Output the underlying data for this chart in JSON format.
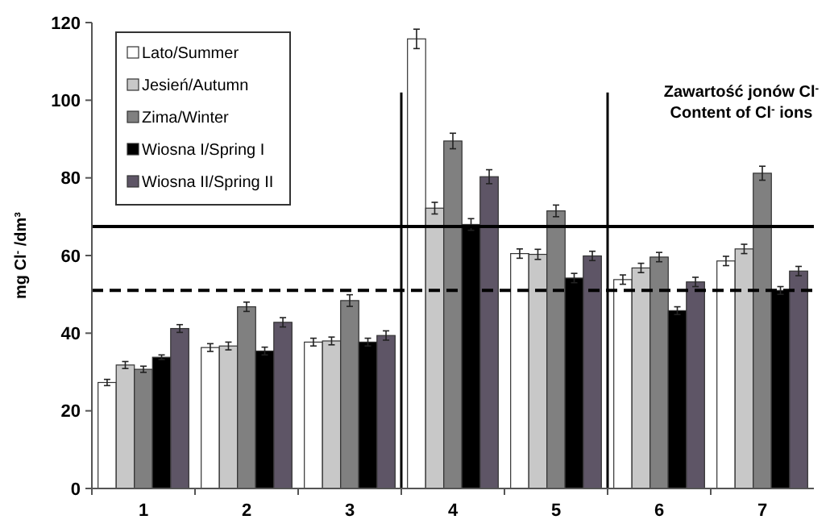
{
  "chart_data": {
    "type": "bar",
    "title": "Zawartość jonów Cl$^{-}$",
    "subtitle": "Content of Cl$^{-}$ ions",
    "ylabel": "mg Cl$^{-}$ /dm³",
    "categories": [
      "1",
      "2",
      "3",
      "4",
      "5",
      "6",
      "7"
    ],
    "series": [
      {
        "name": "Lato/Summer",
        "color": "#ffffff",
        "values": [
          27.3,
          36.3,
          37.7,
          115.8,
          60.5,
          53.8,
          58.6
        ],
        "errors": [
          0.8,
          1,
          1,
          2.5,
          1.2,
          1.2,
          1.2
        ]
      },
      {
        "name": "Jesień/Autumn",
        "color": "#c8c8c8",
        "values": [
          31.8,
          36.7,
          38,
          72.2,
          60.3,
          56.8,
          61.7
        ],
        "errors": [
          0.9,
          1,
          1,
          1.5,
          1.3,
          1.2,
          1.2
        ]
      },
      {
        "name": "Zima/Winter",
        "color": "#808080",
        "values": [
          30.7,
          46.8,
          48.4,
          89.5,
          71.5,
          59.6,
          81.2
        ],
        "errors": [
          0.8,
          1.2,
          1.5,
          2,
          1.5,
          1.2,
          1.8
        ]
      },
      {
        "name": "Wiosna I/Spring I",
        "color": "#000000",
        "values": [
          33.8,
          35.4,
          37.7,
          68,
          54.2,
          45.8,
          51
        ],
        "errors": [
          0.6,
          1,
          1,
          1.5,
          1.2,
          1,
          1
        ]
      },
      {
        "name": "Wiosna II/Spring II",
        "color": "#5e5566",
        "values": [
          41.2,
          42.8,
          39.4,
          80.3,
          59.9,
          53.2,
          56
        ],
        "errors": [
          1,
          1.2,
          1.2,
          1.8,
          1.2,
          1.2,
          1.2
        ]
      }
    ],
    "ylim": [
      0,
      120
    ],
    "yticks": [
      0,
      20,
      40,
      60,
      80,
      100,
      120
    ],
    "grid": false,
    "legend": "top left",
    "ref_lines": [
      {
        "axis": "y",
        "value": 67.5,
        "line_style": "solid"
      },
      {
        "axis": "y",
        "value": 51,
        "line_style": "dashed"
      }
    ]
  }
}
